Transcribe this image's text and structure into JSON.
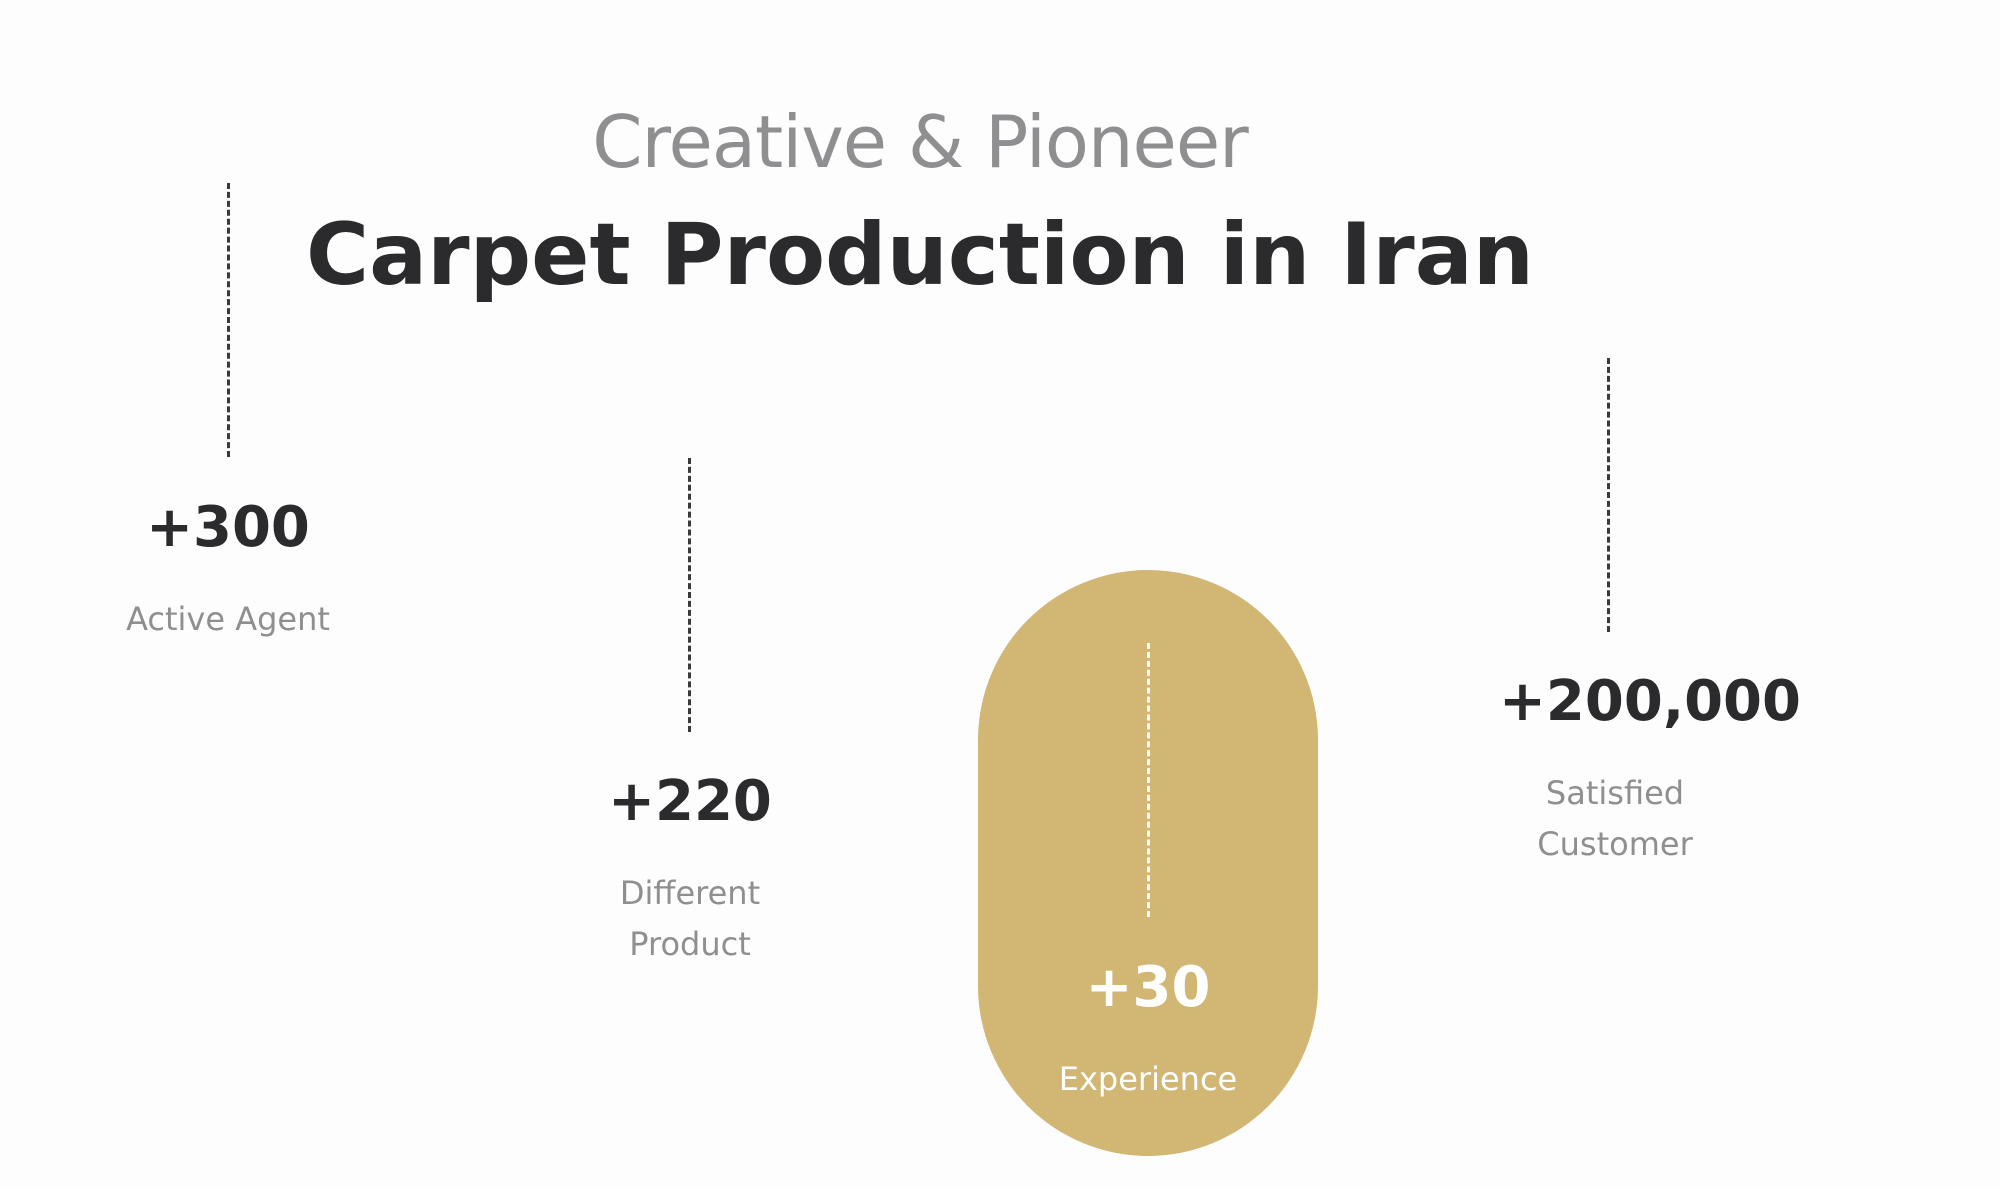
{
  "header": {
    "subtitle": "Creative & Pioneer",
    "title": "Carpet Production in Iran"
  },
  "colors": {
    "accent_underline": "#5fc4ad",
    "highlight_pill": "#d1b773",
    "text_dark": "#2b2b2e",
    "text_muted": "#8f8f91"
  },
  "stats": [
    {
      "value": "+300",
      "label": "Active Agent"
    },
    {
      "value": "+220",
      "label": "Different\nProduct"
    },
    {
      "value": "+30",
      "label": "Experience"
    },
    {
      "value": "+200,000",
      "label": "Satisfied\nCustomer"
    }
  ]
}
